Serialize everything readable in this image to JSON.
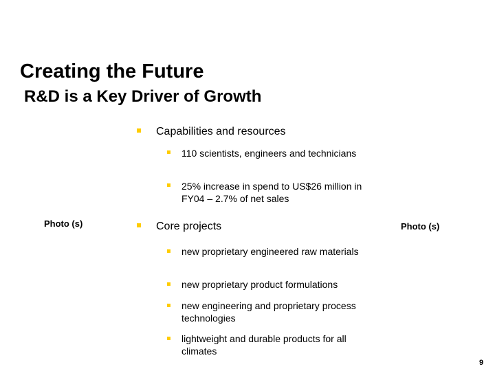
{
  "slide": {
    "title": "Creating the Future",
    "subtitle": "R&D is a Key Driver of Growth",
    "photo_left": "Photo (s)",
    "photo_right": "Photo (s)",
    "page_number": "9",
    "accent_color": "#FFCC00"
  },
  "bullets": [
    {
      "text": "Capabilities and resources",
      "sub": [
        "110 scientists, engineers and technicians",
        "25% increase in spend to US$26 million in FY04 – 2.7% of net sales"
      ]
    },
    {
      "text": "Core projects",
      "sub": [
        "new proprietary engineered raw materials",
        "new proprietary product formulations",
        "new engineering and proprietary process technologies",
        "lightweight and durable products for all climates"
      ]
    }
  ]
}
